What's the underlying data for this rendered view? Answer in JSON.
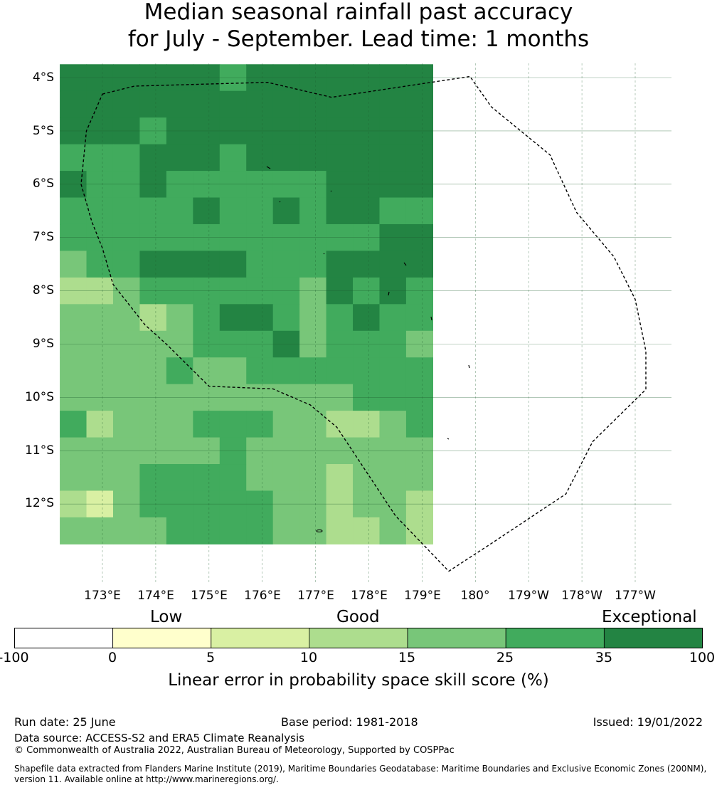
{
  "title": {
    "line1": "Median seasonal rainfall past accuracy",
    "line2": "for July - September. Lead time: 1 months"
  },
  "map": {
    "lat_labels": [
      "4°S",
      "5°S",
      "6°S",
      "7°S",
      "8°S",
      "9°S",
      "10°S",
      "11°S",
      "12°S"
    ],
    "lon_labels": [
      "173°E",
      "174°E",
      "175°E",
      "176°E",
      "177°E",
      "178°E",
      "179°E",
      "180°",
      "179°W",
      "178°W",
      "177°W"
    ],
    "grid": [
      [
        6,
        6,
        6,
        6,
        6,
        6,
        5,
        6,
        6,
        6,
        6,
        6,
        6,
        6
      ],
      [
        6,
        6,
        6,
        6,
        6,
        6,
        6,
        6,
        6,
        6,
        6,
        6,
        6,
        6
      ],
      [
        6,
        6,
        6,
        5,
        6,
        6,
        6,
        6,
        6,
        6,
        6,
        6,
        6,
        6
      ],
      [
        5,
        5,
        5,
        6,
        6,
        6,
        5,
        6,
        6,
        6,
        6,
        6,
        6,
        6
      ],
      [
        6,
        5,
        5,
        6,
        5,
        5,
        5,
        5,
        5,
        5,
        6,
        6,
        6,
        6
      ],
      [
        5,
        5,
        5,
        5,
        5,
        6,
        5,
        5,
        6,
        5,
        6,
        6,
        5,
        5
      ],
      [
        5,
        5,
        5,
        5,
        5,
        5,
        5,
        5,
        5,
        5,
        5,
        5,
        6,
        6
      ],
      [
        4,
        5,
        5,
        6,
        6,
        6,
        6,
        5,
        5,
        5,
        6,
        6,
        6,
        6
      ],
      [
        3,
        3,
        4,
        5,
        5,
        5,
        5,
        5,
        5,
        4,
        6,
        5,
        6,
        5
      ],
      [
        4,
        4,
        4,
        3,
        4,
        5,
        6,
        6,
        5,
        4,
        5,
        6,
        5,
        5
      ],
      [
        4,
        4,
        4,
        4,
        4,
        5,
        5,
        5,
        6,
        4,
        5,
        5,
        5,
        4
      ],
      [
        4,
        4,
        4,
        4,
        5,
        4,
        4,
        5,
        5,
        5,
        5,
        5,
        5,
        5
      ],
      [
        4,
        4,
        4,
        4,
        4,
        4,
        4,
        4,
        4,
        4,
        4,
        5,
        5,
        5
      ],
      [
        5,
        3,
        4,
        4,
        4,
        5,
        5,
        5,
        4,
        4,
        3,
        3,
        4,
        5
      ],
      [
        4,
        4,
        4,
        4,
        4,
        4,
        5,
        4,
        4,
        4,
        4,
        4,
        4,
        4
      ],
      [
        4,
        4,
        4,
        5,
        5,
        5,
        5,
        4,
        4,
        4,
        3,
        4,
        4,
        4
      ],
      [
        3,
        2,
        4,
        5,
        5,
        5,
        5,
        5,
        4,
        4,
        3,
        4,
        4,
        3
      ],
      [
        4,
        4,
        4,
        4,
        5,
        5,
        5,
        5,
        4,
        4,
        3,
        3,
        4,
        3
      ]
    ],
    "boundary_lonlat": [
      [
        173.0,
        -4.31
      ],
      [
        173.6,
        -4.16
      ],
      [
        176.1,
        -4.09
      ],
      [
        177.3,
        -4.37
      ],
      [
        179.9,
        -3.98
      ],
      [
        180.3,
        -4.55
      ],
      [
        181.4,
        -5.45
      ],
      [
        181.9,
        -6.53
      ],
      [
        182.6,
        -7.36
      ],
      [
        183.0,
        -8.16
      ],
      [
        183.2,
        -9.13
      ],
      [
        183.2,
        -9.85
      ],
      [
        182.2,
        -10.83
      ],
      [
        181.7,
        -11.81
      ],
      [
        180.3,
        -12.74
      ],
      [
        179.5,
        -13.26
      ],
      [
        178.5,
        -12.22
      ],
      [
        177.4,
        -10.56
      ],
      [
        176.9,
        -10.14
      ],
      [
        176.2,
        -9.84
      ],
      [
        175.0,
        -9.79
      ],
      [
        174.2,
        -9.0
      ],
      [
        173.8,
        -8.64
      ],
      [
        173.2,
        -7.88
      ],
      [
        173.0,
        -7.2
      ],
      [
        172.8,
        -6.7
      ],
      [
        172.6,
        -6.0
      ],
      [
        172.7,
        -5.0
      ]
    ]
  },
  "colorbar": {
    "categories": [
      "Low",
      "Good",
      "Exceptional"
    ],
    "ticks": [
      "-100",
      "0",
      "5",
      "10",
      "15",
      "25",
      "35",
      "100"
    ],
    "colors": [
      "#ffffff",
      "#ffffcc",
      "#d9f0a3",
      "#addd8e",
      "#78c679",
      "#41ab5d",
      "#238443"
    ],
    "label": "Linear error in probability space skill score (%)"
  },
  "footer": {
    "run_date": "Run date: 25 June",
    "base_period": "Base period: 1981-2018",
    "issued": "Issued: 19/01/2022",
    "data_source": "Data source: ACCESS-S2 and ERA5 Climate Reanalysis",
    "copyright": "© Commonwealth of Australia 2022, Australian Bureau of Meteorology, Supported by COSPPac",
    "shapefile_line1": "Shapefile data extracted from Flanders Marine Institute (2019), Maritime Boundaries Geodatabase: Maritime Boundaries and Exclusive Economic Zones (200NM),",
    "shapefile_line2": "version 11. Available online at http://www.marineregions.org/."
  }
}
